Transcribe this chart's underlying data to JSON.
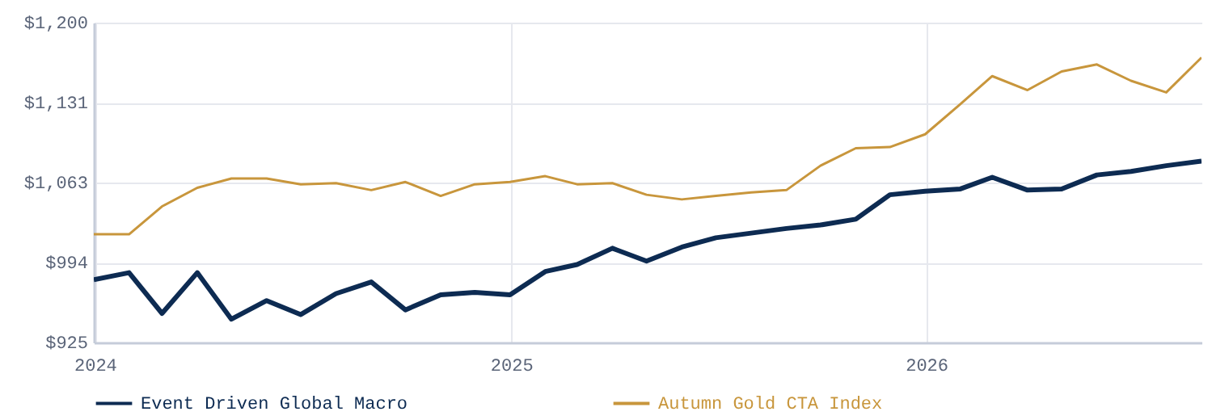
{
  "chart_data": {
    "type": "line",
    "x": [
      "2023-12-31",
      "2024-01-31",
      "2024-02-29",
      "2024-03-31",
      "2024-04-30",
      "2024-05-31",
      "2024-06-30",
      "2024-07-31",
      "2024-08-31",
      "2024-09-30",
      "2024-10-31",
      "2024-11-30",
      "2024-12-31",
      "2025-01-31",
      "2025-02-28",
      "2025-03-31",
      "2025-04-30",
      "2025-05-31",
      "2025-06-30",
      "2025-07-31",
      "2025-08-31",
      "2025-09-30",
      "2025-10-31",
      "2025-11-30",
      "2025-12-31",
      "2026-01-31",
      "2026-02-28",
      "2026-03-31",
      "2026-04-30",
      "2026-05-31",
      "2026-06-30",
      "2026-07-31",
      "2026-08-31"
    ],
    "series": [
      {
        "name": "Event Driven Global Macro",
        "color": "#0d2b52",
        "values": [
          979,
          985,
          950,
          985,
          945,
          961,
          949,
          967,
          977,
          953,
          966,
          968,
          966,
          986,
          992,
          1006,
          995,
          1007,
          1015,
          1019,
          1023,
          1026,
          1031,
          1052,
          1055,
          1057,
          1067,
          1056,
          1057,
          1069,
          1072,
          1077,
          1081
        ]
      },
      {
        "name": "Autumn Gold CTA Index",
        "color": "#c8963c",
        "values": [
          1018,
          1018,
          1042,
          1058,
          1066,
          1066,
          1061,
          1062,
          1056,
          1063,
          1051,
          1061,
          1063,
          1068,
          1061,
          1062,
          1052,
          1048,
          1051,
          1054,
          1056,
          1077,
          1092,
          1093,
          1104,
          1130,
          1154,
          1142,
          1158,
          1164,
          1150,
          1140,
          1170
        ]
      }
    ],
    "xlim": [
      "2023-12-31",
      "2026-08-31"
    ],
    "xticks": [
      {
        "value": "2024-01-01",
        "label": "2024"
      },
      {
        "value": "2025-01-01",
        "label": "2025"
      },
      {
        "value": "2026-01-01",
        "label": "2026"
      }
    ],
    "ylim": [
      925,
      1200
    ],
    "yticks": [
      {
        "value": 925,
        "label": "$925"
      },
      {
        "value": 993.75,
        "label": "$994"
      },
      {
        "value": 1062.5,
        "label": "$1,063"
      },
      {
        "value": 1131.25,
        "label": "$1,131"
      },
      {
        "value": 1200,
        "label": "$1,200"
      }
    ],
    "grid": true,
    "legend": "bottom"
  }
}
